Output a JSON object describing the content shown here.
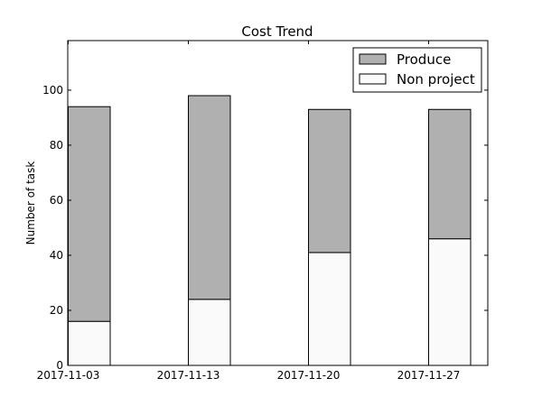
{
  "chart_data": {
    "type": "bar",
    "stacked": true,
    "title": "Cost Trend",
    "xlabel": "",
    "ylabel": "Number of task",
    "categories": [
      "2017-11-03",
      "2017-11-13",
      "2017-11-20",
      "2017-11-27"
    ],
    "series": [
      {
        "name": "Non project",
        "values": [
          16,
          24,
          41,
          46
        ],
        "color": "#fafafa"
      },
      {
        "name": "Produce",
        "values": [
          78,
          74,
          52,
          47
        ],
        "color": "#b0b0b0"
      }
    ],
    "ylim": [
      0,
      118
    ],
    "yticks": [
      0,
      20,
      40,
      60,
      80,
      100
    ],
    "grid": false,
    "legend_position": "top-right"
  }
}
